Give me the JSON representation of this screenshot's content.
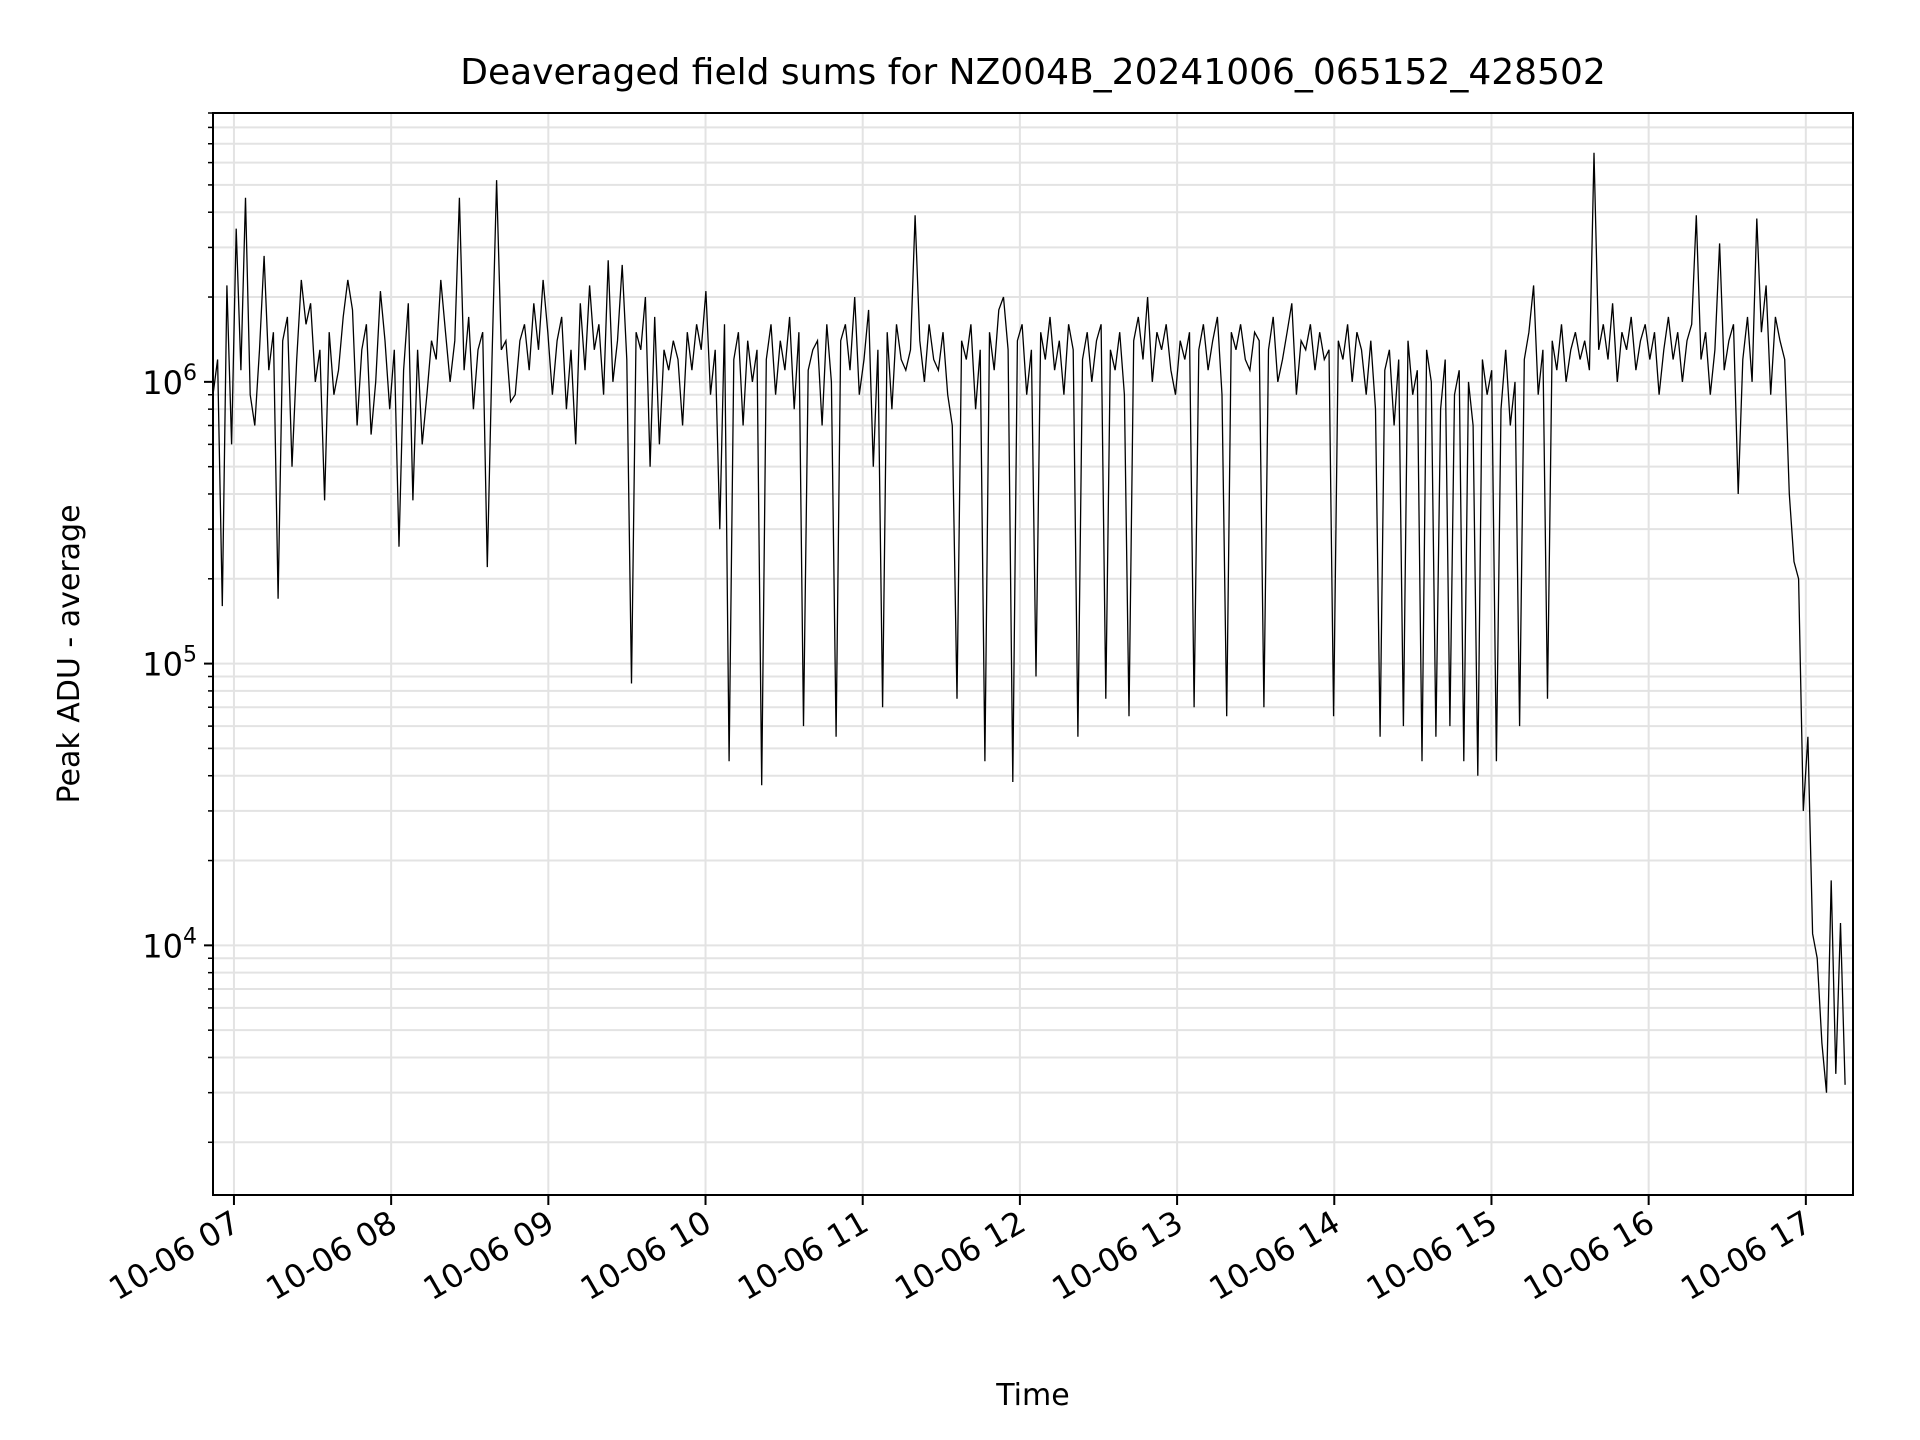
{
  "chart_data": {
    "type": "line",
    "title": "Deaveraged field sums for NZ004B_20241006_065152_428502",
    "xlabel": "Time",
    "ylabel": "Peak ADU - average",
    "x_start": "10-06 06:52",
    "x_end": "10-06 17:15",
    "xlim": [
      "10-06 06:52",
      "10-06 17:18"
    ],
    "ylim": [
      1300,
      9000000
    ],
    "yscale": "log",
    "grid": true,
    "line_color": "#000000",
    "x_ticks": [
      {
        "t": "10-06 07:00",
        "label": "10-06 07"
      },
      {
        "t": "10-06 08:00",
        "label": "10-06 08"
      },
      {
        "t": "10-06 09:00",
        "label": "10-06 09"
      },
      {
        "t": "10-06 10:00",
        "label": "10-06 10"
      },
      {
        "t": "10-06 11:00",
        "label": "10-06 11"
      },
      {
        "t": "10-06 12:00",
        "label": "10-06 12"
      },
      {
        "t": "10-06 13:00",
        "label": "10-06 13"
      },
      {
        "t": "10-06 14:00",
        "label": "10-06 14"
      },
      {
        "t": "10-06 15:00",
        "label": "10-06 15"
      },
      {
        "t": "10-06 16:00",
        "label": "10-06 16"
      },
      {
        "t": "10-06 17:00",
        "label": "10-06 17"
      }
    ],
    "y_ticks": [
      {
        "value": 10000,
        "base": "10",
        "exp": "4"
      },
      {
        "value": 100000,
        "base": "10",
        "exp": "5"
      },
      {
        "value": 1000000,
        "base": "10",
        "exp": "6"
      }
    ],
    "series": [
      {
        "values": [
          900000,
          1200000,
          160000,
          2200000,
          600000,
          3500000,
          1100000,
          4500000,
          900000,
          700000,
          1300000,
          2800000,
          1100000,
          1500000,
          170000,
          1400000,
          1700000,
          500000,
          1200000,
          2300000,
          1600000,
          1900000,
          1000000,
          1300000,
          380000,
          1500000,
          900000,
          1100000,
          1700000,
          2300000,
          1800000,
          700000,
          1300000,
          1600000,
          650000,
          1000000,
          2100000,
          1400000,
          800000,
          1300000,
          260000,
          1100000,
          1900000,
          380000,
          1300000,
          600000,
          900000,
          1400000,
          1200000,
          2300000,
          1500000,
          1000000,
          1400000,
          4500000,
          1100000,
          1700000,
          800000,
          1300000,
          1500000,
          220000,
          1200000,
          5200000,
          1300000,
          1400000,
          850000,
          900000,
          1400000,
          1600000,
          1100000,
          1900000,
          1300000,
          2300000,
          1500000,
          900000,
          1400000,
          1700000,
          800000,
          1300000,
          600000,
          1900000,
          1100000,
          2200000,
          1300000,
          1600000,
          900000,
          2700000,
          1000000,
          1400000,
          2600000,
          1200000,
          85000,
          1500000,
          1300000,
          2000000,
          500000,
          1700000,
          600000,
          1300000,
          1100000,
          1400000,
          1200000,
          700000,
          1500000,
          1100000,
          1600000,
          1300000,
          2100000,
          900000,
          1300000,
          300000,
          1600000,
          45000,
          1200000,
          1500000,
          700000,
          1400000,
          1000000,
          1300000,
          37000,
          1200000,
          1600000,
          900000,
          1400000,
          1100000,
          1700000,
          800000,
          1500000,
          60000,
          1100000,
          1300000,
          1400000,
          700000,
          1600000,
          1000000,
          55000,
          1400000,
          1600000,
          1100000,
          2000000,
          900000,
          1200000,
          1800000,
          500000,
          1300000,
          70000,
          1500000,
          800000,
          1600000,
          1200000,
          1100000,
          1300000,
          3900000,
          1400000,
          1000000,
          1600000,
          1200000,
          1100000,
          1500000,
          900000,
          700000,
          75000,
          1400000,
          1200000,
          1600000,
          800000,
          1300000,
          45000,
          1500000,
          1100000,
          1800000,
          2000000,
          1300000,
          38000,
          1400000,
          1600000,
          900000,
          1300000,
          90000,
          1500000,
          1200000,
          1700000,
          1100000,
          1400000,
          900000,
          1600000,
          1300000,
          55000,
          1200000,
          1500000,
          1000000,
          1400000,
          1600000,
          75000,
          1300000,
          1100000,
          1500000,
          900000,
          65000,
          1400000,
          1700000,
          1200000,
          2000000,
          1000000,
          1500000,
          1300000,
          1600000,
          1100000,
          900000,
          1400000,
          1200000,
          1500000,
          70000,
          1300000,
          1600000,
          1100000,
          1400000,
          1700000,
          900000,
          65000,
          1500000,
          1300000,
          1600000,
          1200000,
          1100000,
          1500000,
          1400000,
          70000,
          1300000,
          1700000,
          1000000,
          1200000,
          1500000,
          1900000,
          900000,
          1400000,
          1300000,
          1600000,
          1100000,
          1500000,
          1200000,
          1300000,
          65000,
          1400000,
          1200000,
          1600000,
          1000000,
          1500000,
          1300000,
          900000,
          1400000,
          800000,
          55000,
          1100000,
          1300000,
          700000,
          1200000,
          60000,
          1400000,
          900000,
          1100000,
          45000,
          1300000,
          1000000,
          55000,
          800000,
          1200000,
          60000,
          900000,
          1100000,
          45000,
          1000000,
          700000,
          40000,
          1200000,
          900000,
          1100000,
          45000,
          800000,
          1300000,
          700000,
          1000000,
          60000,
          1200000,
          1500000,
          2200000,
          900000,
          1300000,
          75000,
          1400000,
          1100000,
          1600000,
          1000000,
          1300000,
          1500000,
          1200000,
          1400000,
          1100000,
          6500000,
          1300000,
          1600000,
          1200000,
          1900000,
          1000000,
          1500000,
          1300000,
          1700000,
          1100000,
          1400000,
          1600000,
          1200000,
          1500000,
          900000,
          1300000,
          1700000,
          1200000,
          1500000,
          1000000,
          1400000,
          1600000,
          3900000,
          1200000,
          1500000,
          900000,
          1300000,
          3100000,
          1100000,
          1400000,
          1600000,
          400000,
          1200000,
          1700000,
          1000000,
          3800000,
          1500000,
          2200000,
          900000,
          1700000,
          1400000,
          1200000,
          400000,
          230000,
          200000,
          30000,
          55000,
          11000,
          9000,
          4500,
          3000,
          17000,
          3500,
          12000,
          3200
        ]
      }
    ]
  }
}
